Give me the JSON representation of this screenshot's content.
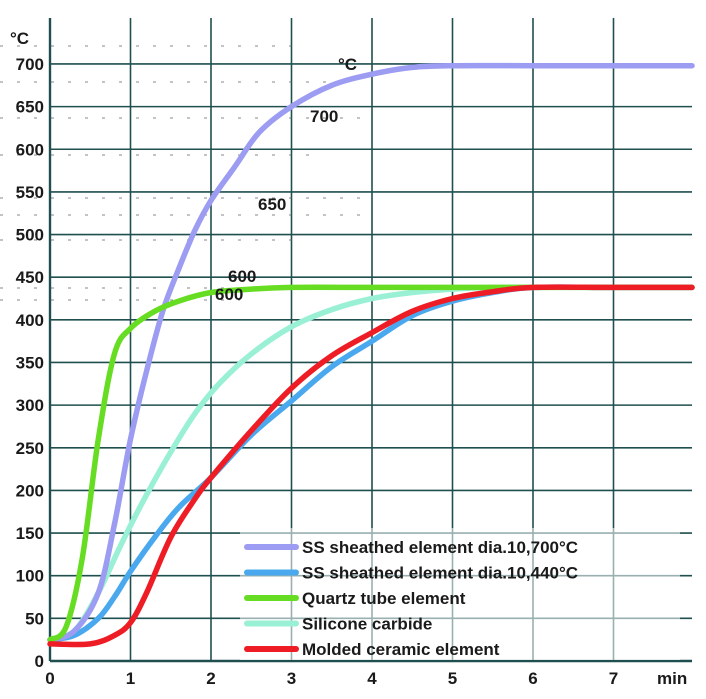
{
  "chart_data": {
    "type": "line",
    "xlabel": "min",
    "ylabel": "°C",
    "xlim": [
      0,
      8
    ],
    "ylim": [
      0,
      700
    ],
    "x_ticks": [
      "0",
      "1",
      "2",
      "3",
      "4",
      "5",
      "6",
      "7"
    ],
    "y_ticks": [
      "0",
      "50",
      "100",
      "150",
      "200",
      "250",
      "300",
      "350",
      "400",
      "450",
      "500",
      "550",
      "600",
      "650",
      "700"
    ],
    "grid": true,
    "legend_position": "bottom-right",
    "series": [
      {
        "name": "SS sheathed element dia.10,700°C",
        "color": "#9b9cf2",
        "x": [
          0,
          0.3,
          0.6,
          0.8,
          1.0,
          1.2,
          1.4,
          1.6,
          1.8,
          2.0,
          2.3,
          2.6,
          3.0,
          3.5,
          4.0,
          4.5,
          5.0,
          6.0,
          7.0,
          8.0
        ],
        "y": [
          25,
          35,
          80,
          160,
          260,
          340,
          410,
          460,
          505,
          540,
          580,
          620,
          650,
          675,
          688,
          696,
          698,
          698,
          698,
          698
        ]
      },
      {
        "name": "SS sheathed element dia.10,440°C",
        "color": "#4aa8ee",
        "x": [
          0,
          0.3,
          0.6,
          0.8,
          1.0,
          1.3,
          1.6,
          2.0,
          2.5,
          3.0,
          3.5,
          4.0,
          4.5,
          5.0,
          5.5,
          6.0,
          7.0,
          8.0
        ],
        "y": [
          25,
          30,
          50,
          75,
          105,
          145,
          180,
          215,
          265,
          305,
          345,
          375,
          405,
          422,
          432,
          438,
          438,
          438
        ]
      },
      {
        "name": "Quartz tube element",
        "color": "#66dd22",
        "x": [
          0,
          0.2,
          0.4,
          0.6,
          0.8,
          1.0,
          1.3,
          1.6,
          2.0,
          2.5,
          3.0,
          4.0,
          5.0,
          6.0,
          7.0,
          8.0
        ],
        "y": [
          25,
          40,
          120,
          260,
          360,
          390,
          410,
          422,
          432,
          436,
          438,
          438,
          438,
          438,
          438,
          438
        ]
      },
      {
        "name": "Silicone carbide",
        "color": "#99f0d4",
        "x": [
          0,
          0.3,
          0.6,
          0.9,
          1.2,
          1.5,
          1.8,
          2.1,
          2.5,
          3.0,
          3.5,
          4.0,
          4.5,
          5.0,
          5.5,
          6.0,
          7.0,
          8.0
        ],
        "y": [
          25,
          35,
          80,
          140,
          195,
          245,
          290,
          325,
          360,
          392,
          412,
          425,
          432,
          436,
          438,
          438,
          438,
          438
        ]
      },
      {
        "name": "Molded ceramic element",
        "color": "#ee1c24",
        "x": [
          0,
          0.5,
          0.8,
          1.0,
          1.2,
          1.5,
          1.8,
          2.0,
          2.5,
          3.0,
          3.5,
          4.0,
          4.5,
          5.0,
          5.5,
          6.0,
          7.0,
          8.0
        ],
        "y": [
          20,
          20,
          30,
          45,
          80,
          145,
          190,
          215,
          270,
          320,
          358,
          385,
          410,
          425,
          433,
          438,
          438,
          438
        ]
      }
    ]
  },
  "overlay_labels": [
    "°C",
    "700",
    "650",
    "600",
    "600"
  ]
}
